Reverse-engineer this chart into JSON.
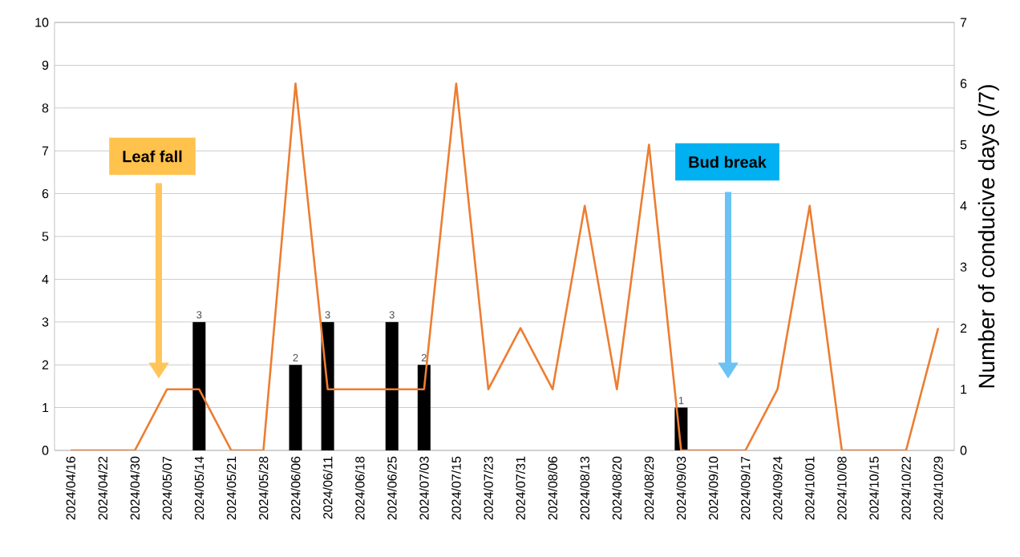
{
  "chart_data": {
    "type": "bar",
    "categories": [
      "2024/04/16",
      "2024/04/22",
      "2024/04/30",
      "2024/05/07",
      "2024/05/14",
      "2024/05/21",
      "2024/05/28",
      "2024/06/06",
      "2024/06/11",
      "2024/06/18",
      "2024/06/25",
      "2024/07/03",
      "2024/07/15",
      "2024/07/23",
      "2024/07/31",
      "2024/08/06",
      "2024/08/13",
      "2024/08/20",
      "2024/08/29",
      "2024/09/03",
      "2024/09/10",
      "2024/09/17",
      "2024/09/24",
      "2024/10/01",
      "2024/10/08",
      "2024/10/15",
      "2024/10/22",
      "2024/10/29"
    ],
    "series": [
      {
        "color": "#000000",
        "values": [
          null,
          null,
          null,
          null,
          3,
          null,
          null,
          2,
          3,
          null,
          3,
          2,
          null,
          null,
          null,
          null,
          null,
          null,
          null,
          1,
          null,
          null,
          null,
          null,
          null,
          null,
          null,
          null
        ],
        "value_labels": [
          null,
          null,
          null,
          null,
          "3",
          null,
          null,
          "2",
          "3",
          null,
          "3",
          "2",
          null,
          null,
          null,
          null,
          null,
          null,
          null,
          "1",
          null,
          null,
          null,
          null,
          null,
          null,
          null,
          null
        ]
      },
      {
        "type": "line",
        "axis": "y2",
        "color": "#ed7d31",
        "values": [
          0,
          0,
          0,
          1,
          1,
          0,
          0,
          6,
          1,
          1,
          1,
          1,
          6,
          1,
          2,
          1,
          4,
          1,
          5,
          0,
          0,
          0,
          1,
          4,
          0,
          0,
          0,
          2
        ]
      }
    ],
    "ylim": [
      0,
      10
    ],
    "yticks": [
      0,
      1,
      2,
      3,
      4,
      5,
      6,
      7,
      8,
      9,
      10
    ],
    "y2lim": [
      0,
      7
    ],
    "y2ticks": [
      0,
      1,
      2,
      3,
      4,
      5,
      6,
      7
    ],
    "y2label": "Number of conducive days (/7)",
    "grid": "y",
    "annotations": [
      "Leaf fall",
      "Bud break"
    ]
  }
}
